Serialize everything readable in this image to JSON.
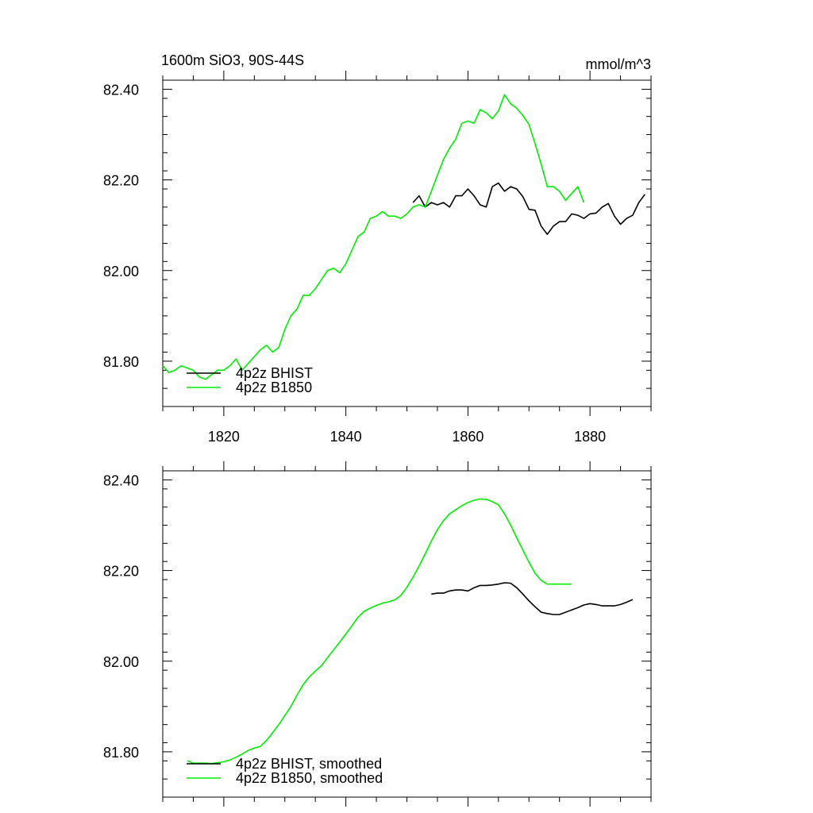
{
  "figure": {
    "title_left": "1600m SiO3, 90S-44S",
    "title_right": "mmol/m^3"
  },
  "colors": {
    "bhist": "#000000",
    "b1850": "#00ee00",
    "axis": "#000000"
  },
  "chart_data": [
    {
      "type": "line",
      "title": "1600m SiO3, 90S-44S",
      "units": "mmol/m^3",
      "xlim": [
        1810,
        1890
      ],
      "ylim": [
        81.7,
        82.42
      ],
      "xticks": [
        1820,
        1840,
        1860,
        1880
      ],
      "xtick_labels": [
        "1820",
        "1840",
        "1860",
        "1880"
      ],
      "yticks": [
        81.8,
        82.0,
        82.2,
        82.4
      ],
      "ytick_labels": [
        "81.80",
        "82.00",
        "82.20",
        "82.40"
      ],
      "legend_position": "bottom-left",
      "series": [
        {
          "name": "4p2z BHIST",
          "color": "#000000",
          "x": [
            1851,
            1852,
            1853,
            1854,
            1855,
            1856,
            1857,
            1858,
            1859,
            1860,
            1861,
            1862,
            1863,
            1864,
            1865,
            1866,
            1867,
            1868,
            1869,
            1870,
            1871,
            1872,
            1873,
            1874,
            1875,
            1876,
            1877,
            1878,
            1879,
            1880,
            1881,
            1882,
            1883,
            1884,
            1885,
            1886,
            1887,
            1888,
            1889
          ],
          "y": [
            82.15,
            82.165,
            82.14,
            82.15,
            82.145,
            82.15,
            82.14,
            82.165,
            82.165,
            82.18,
            82.165,
            82.145,
            82.14,
            82.185,
            82.193,
            82.175,
            82.185,
            82.18,
            82.163,
            82.135,
            82.133,
            82.098,
            82.08,
            82.098,
            82.108,
            82.108,
            82.125,
            82.122,
            82.115,
            82.125,
            82.127,
            82.14,
            82.148,
            82.12,
            82.102,
            82.115,
            82.122,
            82.15,
            82.168
          ]
        },
        {
          "name": "4p2z B1850",
          "color": "#00ee00",
          "x": [
            1810,
            1811,
            1812,
            1813,
            1814,
            1815,
            1816,
            1817,
            1818,
            1819,
            1820,
            1821,
            1822,
            1823,
            1824,
            1825,
            1826,
            1827,
            1828,
            1829,
            1830,
            1831,
            1832,
            1833,
            1834,
            1835,
            1836,
            1837,
            1838,
            1839,
            1840,
            1841,
            1842,
            1843,
            1844,
            1845,
            1846,
            1847,
            1848,
            1849,
            1850,
            1851,
            1852,
            1853,
            1854,
            1855,
            1856,
            1857,
            1858,
            1859,
            1860,
            1861,
            1862,
            1863,
            1864,
            1865,
            1866,
            1867,
            1868,
            1869,
            1870,
            1871,
            1872,
            1873,
            1874,
            1875,
            1876,
            1877,
            1878,
            1879
          ],
          "y": [
            81.79,
            81.775,
            81.78,
            81.79,
            81.785,
            81.78,
            81.765,
            81.76,
            81.77,
            81.78,
            81.78,
            81.79,
            81.805,
            81.78,
            81.795,
            81.81,
            81.825,
            81.835,
            81.82,
            81.83,
            81.87,
            81.9,
            81.915,
            81.945,
            81.945,
            81.96,
            81.98,
            82.0,
            82.005,
            81.995,
            82.015,
            82.045,
            82.075,
            82.085,
            82.115,
            82.12,
            82.13,
            82.12,
            82.12,
            82.115,
            82.125,
            82.14,
            82.145,
            82.14,
            82.175,
            82.21,
            82.245,
            82.27,
            82.29,
            82.325,
            82.33,
            82.325,
            82.355,
            82.348,
            82.335,
            82.352,
            82.388,
            82.368,
            82.358,
            82.342,
            82.322,
            82.28,
            82.235,
            82.185,
            82.185,
            82.175,
            82.155,
            82.17,
            82.185,
            82.15
          ]
        }
      ]
    },
    {
      "type": "line",
      "title": "",
      "xlim": [
        1810,
        1890
      ],
      "ylim": [
        81.7,
        82.42
      ],
      "xticks": [
        1820,
        1840,
        1860,
        1880
      ],
      "yticks": [
        81.8,
        82.0,
        82.2,
        82.4
      ],
      "ytick_labels": [
        "81.80",
        "82.00",
        "82.20",
        "82.40"
      ],
      "legend_position": "bottom-left",
      "series": [
        {
          "name": "4p2z BHIST, smoothed",
          "color": "#000000",
          "x": [
            1854,
            1855,
            1856,
            1857,
            1858,
            1859,
            1860,
            1861,
            1862,
            1863,
            1864,
            1865,
            1866,
            1867,
            1868,
            1869,
            1870,
            1871,
            1872,
            1873,
            1874,
            1875,
            1876,
            1877,
            1878,
            1879,
            1880,
            1881,
            1882,
            1883,
            1884,
            1885,
            1886,
            1887
          ],
          "y": [
            82.148,
            82.15,
            82.15,
            82.155,
            82.157,
            82.157,
            82.155,
            82.162,
            82.167,
            82.167,
            82.168,
            82.17,
            82.173,
            82.172,
            82.162,
            82.148,
            82.133,
            82.12,
            82.108,
            82.105,
            82.103,
            82.103,
            82.108,
            82.113,
            82.118,
            82.124,
            82.127,
            82.125,
            82.122,
            82.122,
            82.122,
            82.125,
            82.13,
            82.136
          ]
        },
        {
          "name": "4p2z B1850, smoothed",
          "color": "#00ee00",
          "x": [
            1814,
            1815,
            1816,
            1817,
            1818,
            1819,
            1820,
            1821,
            1822,
            1823,
            1824,
            1825,
            1826,
            1827,
            1828,
            1829,
            1830,
            1831,
            1832,
            1833,
            1834,
            1835,
            1836,
            1837,
            1838,
            1839,
            1840,
            1841,
            1842,
            1843,
            1844,
            1845,
            1846,
            1847,
            1848,
            1849,
            1850,
            1851,
            1852,
            1853,
            1854,
            1855,
            1856,
            1857,
            1858,
            1859,
            1860,
            1861,
            1862,
            1863,
            1864,
            1865,
            1866,
            1867,
            1868,
            1869,
            1870,
            1871,
            1872,
            1873,
            1874,
            1875,
            1876,
            1877
          ],
          "y": [
            81.78,
            81.775,
            81.775,
            81.775,
            81.774,
            81.776,
            81.778,
            81.782,
            81.788,
            81.795,
            81.803,
            81.808,
            81.812,
            81.825,
            81.842,
            81.86,
            81.88,
            81.9,
            81.925,
            81.948,
            81.965,
            81.978,
            81.99,
            82.008,
            82.025,
            82.042,
            82.06,
            82.078,
            82.097,
            82.11,
            82.117,
            82.123,
            82.128,
            82.131,
            82.135,
            82.145,
            82.163,
            82.185,
            82.21,
            82.237,
            82.265,
            82.29,
            82.31,
            82.325,
            82.334,
            82.343,
            82.35,
            82.355,
            82.358,
            82.357,
            82.352,
            82.345,
            82.325,
            82.3,
            82.272,
            82.245,
            82.218,
            82.194,
            82.178,
            82.17,
            82.17,
            82.17,
            82.17,
            82.17
          ]
        }
      ]
    }
  ]
}
